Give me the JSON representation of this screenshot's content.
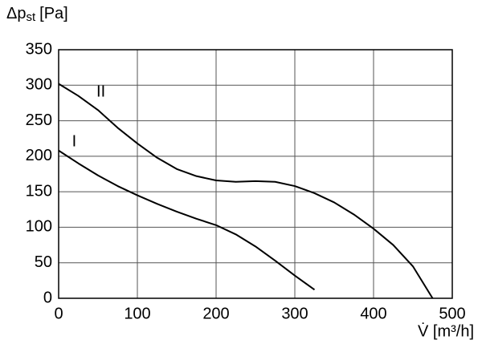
{
  "chart_data": {
    "type": "line",
    "y_label": {
      "main": "Δp",
      "sub": "st",
      "unit": "[Pa]"
    },
    "x_label": "V̇ [m³/h]",
    "x": [
      0,
      25,
      50,
      75,
      100,
      125,
      150,
      175,
      200,
      225,
      250,
      275,
      300,
      325,
      350,
      375,
      400,
      425,
      450,
      475
    ],
    "series": [
      {
        "name": "I",
        "color": "#000000",
        "values": [
          208,
          190,
          173,
          158,
          145,
          133,
          122,
          112,
          103,
          90,
          73,
          53,
          32,
          12,
          null,
          null,
          null,
          null,
          null,
          null
        ]
      },
      {
        "name": "II",
        "color": "#000000",
        "values": [
          302,
          285,
          265,
          240,
          218,
          198,
          182,
          172,
          166,
          164,
          165,
          164,
          158,
          148,
          135,
          118,
          98,
          75,
          45,
          0
        ]
      }
    ],
    "xlim": [
      0,
      500
    ],
    "xticks": [
      0,
      100,
      200,
      300,
      400,
      500
    ],
    "ylim": [
      0,
      350
    ],
    "yticks": [
      0,
      50,
      100,
      150,
      200,
      250,
      300,
      350
    ],
    "grid": true
  }
}
